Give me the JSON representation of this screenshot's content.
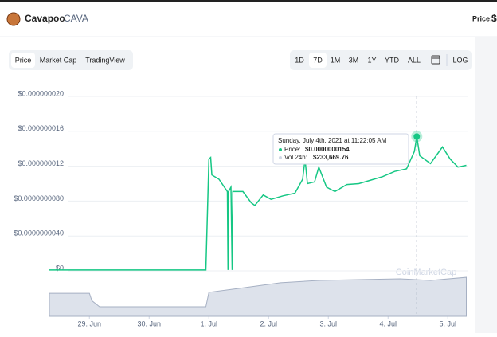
{
  "header": {
    "name": "Cavapoo",
    "symbol": "CAVA",
    "price_label": "Price:",
    "price": "$"
  },
  "tabs": [
    "Price",
    "Market Cap",
    "TradingView"
  ],
  "ranges": [
    "1D",
    "7D",
    "1M",
    "3M",
    "1Y",
    "YTD",
    "ALL"
  ],
  "log": "LOG",
  "watermark": "CoinMarketCap",
  "chart_data": {
    "type": "line",
    "tooltip": {
      "date": "Sunday, July 4th, 2021 at 11:22:05 AM",
      "price_label": "Price:",
      "price": "$0.0000000154",
      "volume_label": "Vol 24h:",
      "volume": "$233,669.76"
    },
    "xlim": [
      -0.67,
      6.33
    ],
    "xticks": [
      {
        "value": 0,
        "label": "29. Jun"
      },
      {
        "value": 1,
        "label": "30. Jun"
      },
      {
        "value": 2,
        "label": "1. Jul"
      },
      {
        "value": 3,
        "label": "2. Jul"
      },
      {
        "value": 4,
        "label": "3. Jul"
      },
      {
        "value": 5,
        "label": "4. Jul"
      },
      {
        "value": 6,
        "label": "5. Jul"
      }
    ],
    "ylim": [
      0,
      2e-08
    ],
    "yticks": [
      {
        "value": 0,
        "label": "$0"
      },
      {
        "value": 4e-09,
        "label": "$0.0000000040"
      },
      {
        "value": 8e-09,
        "label": "$0.0000000080"
      },
      {
        "value": 1.2e-08,
        "label": "$0.000000012"
      },
      {
        "value": 1.6e-08,
        "label": "$0.000000016"
      },
      {
        "value": 2e-08,
        "label": "$0.000000020"
      }
    ],
    "y2lim": [
      0,
      290000
    ],
    "grid": true,
    "series": [
      {
        "name": "Price",
        "color": "#16c784",
        "x": [
          -0.67,
          1.95,
          2.0,
          2.03,
          2.05,
          2.17,
          2.31,
          2.32,
          2.33,
          2.37,
          2.39,
          2.4,
          2.57,
          2.71,
          2.77,
          2.91,
          3.04,
          3.24,
          3.44,
          3.57,
          3.61,
          3.65,
          3.77,
          3.84,
          3.97,
          4.11,
          4.31,
          4.51,
          4.71,
          4.91,
          5.11,
          5.31,
          5.44,
          5.48,
          5.53,
          5.71,
          5.91,
          6.04,
          6.17,
          6.31
        ],
        "values": [
          1e-10,
          1e-10,
          1.28e-08,
          1.3e-08,
          1.1e-08,
          1.05e-08,
          9.1e-09,
          1e-10,
          9.1e-09,
          9.6e-09,
          1e-10,
          9.1e-09,
          9.1e-09,
          7.8e-09,
          7.5e-09,
          8.7e-09,
          8.2e-09,
          8.6e-09,
          8.9e-09,
          1.05e-08,
          1.28e-08,
          1e-08,
          1.02e-08,
          1.19e-08,
          9.6e-09,
          9.1e-09,
          9.9e-09,
          1e-08,
          1.04e-08,
          1.08e-08,
          1.14e-08,
          1.17e-08,
          1.37e-08,
          1.54e-08,
          1.32e-08,
          1.23e-08,
          1.42e-08,
          1.28e-08,
          1.19e-08,
          1.21e-08
        ]
      },
      {
        "name": "Vol 24h",
        "color": "#a6b0c3",
        "axis": "y2",
        "x": [
          -0.67,
          0.0,
          0.04,
          0.17,
          1.95,
          2.0,
          2.5,
          3.2,
          3.84,
          4.51,
          5.2,
          5.71,
          6.31
        ],
        "values": [
          147000,
          147000,
          100000,
          61000,
          61000,
          153000,
          178000,
          214000,
          229000,
          234000,
          239000,
          229000,
          249000
        ]
      }
    ],
    "hover_index": 33
  }
}
